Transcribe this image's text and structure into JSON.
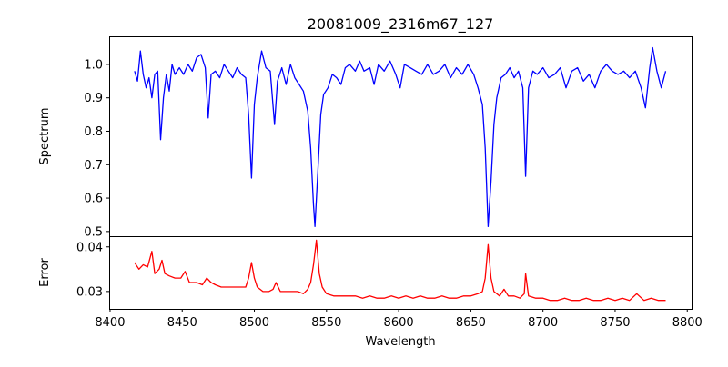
{
  "chart_data": [
    {
      "type": "line",
      "title": "20081009_2316m67_127",
      "xlabel": "",
      "ylabel": "Spectrum",
      "xlim": [
        8399.4,
        8803
      ],
      "ylim": [
        0.486,
        1.084
      ],
      "yticks": [
        0.5,
        0.6,
        0.7,
        0.8,
        0.9,
        1.0
      ],
      "ytick_labels": [
        "0.5",
        "0.6",
        "0.7",
        "0.8",
        "0.9",
        "1.0"
      ],
      "color": "#0000ff",
      "grid": false,
      "series": [
        {
          "name": "Spectrum",
          "points": [
            [
              8417,
              0.98
            ],
            [
              8419,
              0.95
            ],
            [
              8421,
              1.04
            ],
            [
              8423,
              0.97
            ],
            [
              8425,
              0.93
            ],
            [
              8427,
              0.96
            ],
            [
              8429,
              0.9
            ],
            [
              8431,
              0.97
            ],
            [
              8433,
              0.98
            ],
            [
              8435,
              0.775
            ],
            [
              8437,
              0.9
            ],
            [
              8439,
              0.97
            ],
            [
              8441,
              0.92
            ],
            [
              8443,
              1.0
            ],
            [
              8445,
              0.97
            ],
            [
              8448,
              0.99
            ],
            [
              8451,
              0.97
            ],
            [
              8454,
              1.0
            ],
            [
              8457,
              0.98
            ],
            [
              8460,
              1.02
            ],
            [
              8463,
              1.03
            ],
            [
              8466,
              0.99
            ],
            [
              8468,
              0.84
            ],
            [
              8470,
              0.97
            ],
            [
              8473,
              0.98
            ],
            [
              8476,
              0.96
            ],
            [
              8479,
              1.0
            ],
            [
              8482,
              0.98
            ],
            [
              8485,
              0.96
            ],
            [
              8488,
              0.99
            ],
            [
              8491,
              0.97
            ],
            [
              8494,
              0.96
            ],
            [
              8496,
              0.85
            ],
            [
              8498,
              0.66
            ],
            [
              8500,
              0.88
            ],
            [
              8502,
              0.96
            ],
            [
              8505,
              1.04
            ],
            [
              8508,
              0.99
            ],
            [
              8511,
              0.98
            ],
            [
              8514,
              0.82
            ],
            [
              8516,
              0.95
            ],
            [
              8519,
              0.99
            ],
            [
              8522,
              0.94
            ],
            [
              8525,
              1.0
            ],
            [
              8528,
              0.96
            ],
            [
              8531,
              0.94
            ],
            [
              8534,
              0.92
            ],
            [
              8537,
              0.86
            ],
            [
              8539,
              0.75
            ],
            [
              8541,
              0.58
            ],
            [
              8542,
              0.515
            ],
            [
              8544,
              0.68
            ],
            [
              8546,
              0.85
            ],
            [
              8548,
              0.91
            ],
            [
              8551,
              0.93
            ],
            [
              8554,
              0.97
            ],
            [
              8557,
              0.96
            ],
            [
              8560,
              0.94
            ],
            [
              8563,
              0.99
            ],
            [
              8566,
              1.0
            ],
            [
              8570,
              0.98
            ],
            [
              8573,
              1.01
            ],
            [
              8576,
              0.98
            ],
            [
              8580,
              0.99
            ],
            [
              8583,
              0.94
            ],
            [
              8586,
              1.0
            ],
            [
              8590,
              0.98
            ],
            [
              8594,
              1.01
            ],
            [
              8598,
              0.97
            ],
            [
              8601,
              0.93
            ],
            [
              8604,
              1.0
            ],
            [
              8608,
              0.99
            ],
            [
              8612,
              0.98
            ],
            [
              8616,
              0.97
            ],
            [
              8620,
              1.0
            ],
            [
              8624,
              0.97
            ],
            [
              8628,
              0.98
            ],
            [
              8632,
              1.0
            ],
            [
              8636,
              0.96
            ],
            [
              8640,
              0.99
            ],
            [
              8644,
              0.97
            ],
            [
              8648,
              1.0
            ],
            [
              8652,
              0.97
            ],
            [
              8655,
              0.93
            ],
            [
              8658,
              0.88
            ],
            [
              8660,
              0.75
            ],
            [
              8662,
              0.515
            ],
            [
              8664,
              0.65
            ],
            [
              8666,
              0.82
            ],
            [
              8668,
              0.9
            ],
            [
              8671,
              0.96
            ],
            [
              8674,
              0.97
            ],
            [
              8677,
              0.99
            ],
            [
              8680,
              0.96
            ],
            [
              8683,
              0.98
            ],
            [
              8686,
              0.93
            ],
            [
              8688,
              0.665
            ],
            [
              8690,
              0.93
            ],
            [
              8693,
              0.98
            ],
            [
              8696,
              0.97
            ],
            [
              8700,
              0.99
            ],
            [
              8704,
              0.96
            ],
            [
              8708,
              0.97
            ],
            [
              8712,
              0.99
            ],
            [
              8716,
              0.93
            ],
            [
              8720,
              0.98
            ],
            [
              8724,
              0.99
            ],
            [
              8728,
              0.95
            ],
            [
              8732,
              0.97
            ],
            [
              8736,
              0.93
            ],
            [
              8740,
              0.98
            ],
            [
              8744,
              1.0
            ],
            [
              8748,
              0.98
            ],
            [
              8752,
              0.97
            ],
            [
              8756,
              0.98
            ],
            [
              8760,
              0.96
            ],
            [
              8764,
              0.98
            ],
            [
              8768,
              0.93
            ],
            [
              8771,
              0.87
            ],
            [
              8774,
              0.99
            ],
            [
              8776,
              1.05
            ],
            [
              8779,
              0.98
            ],
            [
              8782,
              0.93
            ],
            [
              8785,
              0.98
            ]
          ]
        }
      ]
    },
    {
      "type": "line",
      "title": "",
      "xlabel": "Wavelength",
      "ylabel": "Error",
      "xlim": [
        8399.4,
        8803
      ],
      "ylim": [
        0.0261,
        0.0424
      ],
      "xticks": [
        8400,
        8450,
        8500,
        8550,
        8600,
        8650,
        8700,
        8750,
        8800
      ],
      "xtick_labels": [
        "8400",
        "8450",
        "8500",
        "8550",
        "8600",
        "8650",
        "8700",
        "8750",
        "8800"
      ],
      "yticks": [
        0.03,
        0.04
      ],
      "ytick_labels": [
        "0.03",
        "0.04"
      ],
      "color": "#ff0000",
      "grid": false,
      "series": [
        {
          "name": "Error",
          "points": [
            [
              8417,
              0.0365
            ],
            [
              8420,
              0.035
            ],
            [
              8423,
              0.036
            ],
            [
              8426,
              0.0355
            ],
            [
              8429,
              0.039
            ],
            [
              8431,
              0.034
            ],
            [
              8434,
              0.035
            ],
            [
              8436,
              0.037
            ],
            [
              8438,
              0.034
            ],
            [
              8441,
              0.0335
            ],
            [
              8445,
              0.033
            ],
            [
              8449,
              0.033
            ],
            [
              8452,
              0.0345
            ],
            [
              8455,
              0.032
            ],
            [
              8460,
              0.032
            ],
            [
              8464,
              0.0315
            ],
            [
              8467,
              0.033
            ],
            [
              8470,
              0.032
            ],
            [
              8473,
              0.0315
            ],
            [
              8477,
              0.031
            ],
            [
              8482,
              0.031
            ],
            [
              8486,
              0.031
            ],
            [
              8490,
              0.031
            ],
            [
              8494,
              0.031
            ],
            [
              8496,
              0.033
            ],
            [
              8498,
              0.0365
            ],
            [
              8500,
              0.033
            ],
            [
              8502,
              0.031
            ],
            [
              8506,
              0.03
            ],
            [
              8510,
              0.03
            ],
            [
              8513,
              0.0305
            ],
            [
              8515,
              0.032
            ],
            [
              8518,
              0.03
            ],
            [
              8522,
              0.03
            ],
            [
              8526,
              0.03
            ],
            [
              8530,
              0.03
            ],
            [
              8534,
              0.0295
            ],
            [
              8537,
              0.0305
            ],
            [
              8539,
              0.032
            ],
            [
              8541,
              0.036
            ],
            [
              8543,
              0.0415
            ],
            [
              8545,
              0.034
            ],
            [
              8547,
              0.031
            ],
            [
              8550,
              0.0295
            ],
            [
              8555,
              0.029
            ],
            [
              8560,
              0.029
            ],
            [
              8565,
              0.029
            ],
            [
              8570,
              0.029
            ],
            [
              8575,
              0.0285
            ],
            [
              8580,
              0.029
            ],
            [
              8585,
              0.0285
            ],
            [
              8590,
              0.0285
            ],
            [
              8595,
              0.029
            ],
            [
              8600,
              0.0285
            ],
            [
              8605,
              0.029
            ],
            [
              8610,
              0.0285
            ],
            [
              8615,
              0.029
            ],
            [
              8620,
              0.0285
            ],
            [
              8625,
              0.0285
            ],
            [
              8630,
              0.029
            ],
            [
              8635,
              0.0285
            ],
            [
              8640,
              0.0285
            ],
            [
              8645,
              0.029
            ],
            [
              8650,
              0.029
            ],
            [
              8655,
              0.0295
            ],
            [
              8658,
              0.03
            ],
            [
              8660,
              0.033
            ],
            [
              8662,
              0.0405
            ],
            [
              8664,
              0.033
            ],
            [
              8666,
              0.03
            ],
            [
              8670,
              0.029
            ],
            [
              8673,
              0.0305
            ],
            [
              8676,
              0.029
            ],
            [
              8680,
              0.029
            ],
            [
              8684,
              0.0285
            ],
            [
              8687,
              0.0295
            ],
            [
              8688,
              0.034
            ],
            [
              8690,
              0.029
            ],
            [
              8695,
              0.0285
            ],
            [
              8700,
              0.0285
            ],
            [
              8705,
              0.028
            ],
            [
              8710,
              0.028
            ],
            [
              8715,
              0.0285
            ],
            [
              8720,
              0.028
            ],
            [
              8725,
              0.028
            ],
            [
              8730,
              0.0285
            ],
            [
              8735,
              0.028
            ],
            [
              8740,
              0.028
            ],
            [
              8745,
              0.0285
            ],
            [
              8750,
              0.028
            ],
            [
              8755,
              0.0285
            ],
            [
              8760,
              0.028
            ],
            [
              8765,
              0.0295
            ],
            [
              8770,
              0.028
            ],
            [
              8775,
              0.0285
            ],
            [
              8780,
              0.028
            ],
            [
              8785,
              0.028
            ]
          ]
        }
      ]
    }
  ]
}
